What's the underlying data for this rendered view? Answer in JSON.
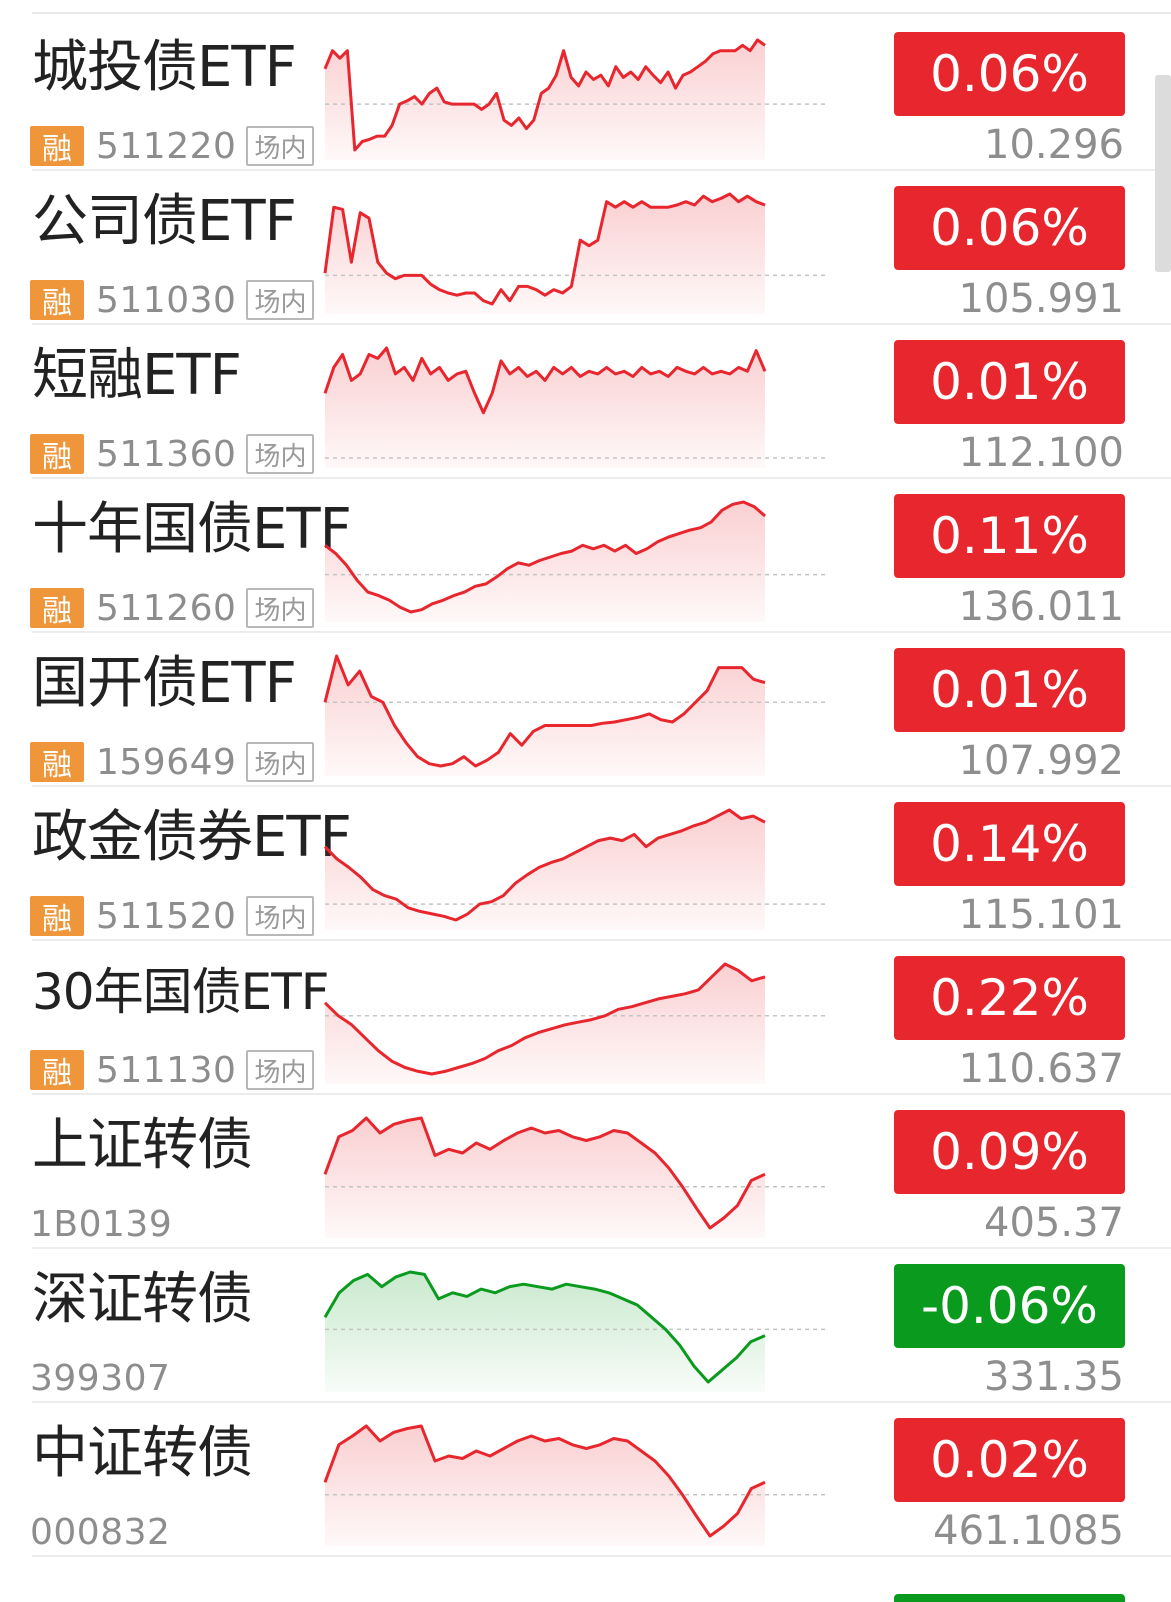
{
  "colors": {
    "up": "#e8262e",
    "down": "#0a9a1e",
    "tag_orange": "#f0963a"
  },
  "rows": [
    {
      "name": "城投债ETF",
      "has_tag": true,
      "tag_rong": "融",
      "code": "511220",
      "tag_market": "场内",
      "change": "0.06%",
      "direction": "up",
      "price": "10.296",
      "spark": [
        0.78,
        0.95,
        0.88,
        0.95,
        0.02,
        0.1,
        0.12,
        0.15,
        0.15,
        0.25,
        0.45,
        0.48,
        0.52,
        0.45,
        0.55,
        0.6,
        0.47,
        0.45,
        0.45,
        0.45,
        0.45,
        0.4,
        0.45,
        0.55,
        0.3,
        0.25,
        0.32,
        0.22,
        0.3,
        0.55,
        0.6,
        0.72,
        0.95,
        0.7,
        0.62,
        0.75,
        0.68,
        0.72,
        0.62,
        0.8,
        0.7,
        0.75,
        0.68,
        0.8,
        0.72,
        0.65,
        0.75,
        0.6,
        0.72,
        0.75,
        0.8,
        0.85,
        0.92,
        0.95,
        0.95,
        0.95,
        1.0,
        0.95,
        1.05,
        1.0
      ],
      "baseline": 0.45
    },
    {
      "name": "公司债ETF",
      "has_tag": true,
      "tag_rong": "融",
      "code": "511030",
      "tag_market": "场内",
      "change": "0.06%",
      "direction": "up",
      "price": "105.991",
      "spark": [
        0.3,
        0.9,
        0.88,
        0.4,
        0.85,
        0.8,
        0.4,
        0.3,
        0.25,
        0.28,
        0.28,
        0.28,
        0.2,
        0.15,
        0.12,
        0.1,
        0.12,
        0.12,
        0.05,
        0.02,
        0.15,
        0.05,
        0.18,
        0.18,
        0.15,
        0.1,
        0.15,
        0.12,
        0.18,
        0.6,
        0.55,
        0.6,
        0.95,
        0.9,
        0.95,
        0.9,
        0.95,
        0.9,
        0.9,
        0.9,
        0.92,
        0.95,
        0.92,
        1.0,
        0.95,
        0.98,
        1.02,
        0.95,
        1.0,
        0.95,
        0.92
      ],
      "baseline": 0.28
    },
    {
      "name": "短融ETF",
      "has_tag": true,
      "tag_rong": "融",
      "code": "511360",
      "tag_market": "场内",
      "change": "0.01%",
      "direction": "up",
      "price": "112.100",
      "spark": [
        0.55,
        0.75,
        0.85,
        0.65,
        0.7,
        0.85,
        0.82,
        0.9,
        0.7,
        0.75,
        0.65,
        0.82,
        0.7,
        0.75,
        0.65,
        0.7,
        0.72,
        0.55,
        0.4,
        0.55,
        0.8,
        0.7,
        0.75,
        0.68,
        0.72,
        0.65,
        0.75,
        0.7,
        0.75,
        0.68,
        0.72,
        0.7,
        0.75,
        0.7,
        0.72,
        0.68,
        0.75,
        0.7,
        0.72,
        0.68,
        0.75,
        0.72,
        0.7,
        0.75,
        0.7,
        0.72,
        0.7,
        0.75,
        0.72,
        0.88,
        0.72
      ],
      "baseline": 0.05
    },
    {
      "name": "十年国债ETF",
      "has_tag": true,
      "tag_rong": "融",
      "code": "511260",
      "tag_market": "场内",
      "change": "0.11%",
      "direction": "up",
      "price": "136.011",
      "spark": [
        0.45,
        0.38,
        0.28,
        0.15,
        0.05,
        0.02,
        -0.02,
        -0.08,
        -0.12,
        -0.1,
        -0.05,
        -0.02,
        0.02,
        0.05,
        0.1,
        0.12,
        0.18,
        0.25,
        0.3,
        0.28,
        0.32,
        0.35,
        0.38,
        0.4,
        0.45,
        0.42,
        0.45,
        0.4,
        0.45,
        0.38,
        0.42,
        0.48,
        0.52,
        0.55,
        0.58,
        0.6,
        0.65,
        0.75,
        0.8,
        0.82,
        0.78,
        0.7
      ],
      "baseline": 0.2
    },
    {
      "name": "国开债ETF",
      "has_tag": true,
      "tag_rong": "融",
      "code": "159649",
      "tag_market": "场内",
      "change": "0.01%",
      "direction": "up",
      "price": "107.992",
      "spark": [
        0.55,
        0.95,
        0.7,
        0.82,
        0.6,
        0.55,
        0.35,
        0.2,
        0.08,
        0.02,
        0.0,
        0.02,
        0.08,
        0.0,
        0.05,
        0.12,
        0.28,
        0.18,
        0.3,
        0.35,
        0.35,
        0.35,
        0.35,
        0.35,
        0.37,
        0.38,
        0.4,
        0.42,
        0.45,
        0.4,
        0.38,
        0.45,
        0.55,
        0.65,
        0.85,
        0.85,
        0.85,
        0.75,
        0.72
      ],
      "baseline": 0.55
    },
    {
      "name": "政金债券ETF",
      "has_tag": true,
      "tag_rong": "融",
      "code": "511520",
      "tag_market": "场内",
      "change": "0.14%",
      "direction": "up",
      "price": "115.101",
      "spark": [
        0.55,
        0.45,
        0.38,
        0.3,
        0.2,
        0.15,
        0.12,
        0.05,
        0.02,
        0.0,
        -0.02,
        -0.05,
        0.0,
        0.08,
        0.1,
        0.15,
        0.25,
        0.32,
        0.38,
        0.42,
        0.45,
        0.5,
        0.55,
        0.6,
        0.62,
        0.6,
        0.65,
        0.55,
        0.62,
        0.65,
        0.68,
        0.72,
        0.75,
        0.8,
        0.85,
        0.78,
        0.8,
        0.75
      ],
      "baseline": 0.08
    },
    {
      "name": "30年国债ETF",
      "has_tag": true,
      "tag_rong": "融",
      "code": "511130",
      "tag_market": "场内",
      "change": "0.22%",
      "direction": "up",
      "price": "110.637",
      "spark": [
        0.55,
        0.45,
        0.38,
        0.28,
        0.18,
        0.1,
        0.05,
        0.02,
        0.0,
        0.02,
        0.05,
        0.08,
        0.12,
        0.18,
        0.22,
        0.28,
        0.32,
        0.35,
        0.38,
        0.4,
        0.42,
        0.45,
        0.5,
        0.52,
        0.55,
        0.58,
        0.6,
        0.62,
        0.65,
        0.75,
        0.85,
        0.8,
        0.72,
        0.75
      ],
      "baseline": 0.45
    },
    {
      "name": "上证转债",
      "has_tag": false,
      "code": "1B0139",
      "change": "0.09%",
      "direction": "up",
      "price": "405.37",
      "spark": [
        0.45,
        0.75,
        0.8,
        0.9,
        0.78,
        0.85,
        0.88,
        0.9,
        0.6,
        0.65,
        0.62,
        0.7,
        0.65,
        0.72,
        0.78,
        0.82,
        0.78,
        0.8,
        0.75,
        0.72,
        0.75,
        0.8,
        0.78,
        0.7,
        0.62,
        0.5,
        0.35,
        0.18,
        0.02,
        0.1,
        0.2,
        0.4,
        0.45
      ],
      "baseline": 0.35
    },
    {
      "name": "深证转债",
      "has_tag": false,
      "code": "399307",
      "change": "-0.06%",
      "direction": "down",
      "price": "331.35",
      "spark": [
        0.55,
        0.75,
        0.85,
        0.9,
        0.8,
        0.88,
        0.92,
        0.9,
        0.7,
        0.75,
        0.72,
        0.78,
        0.75,
        0.8,
        0.82,
        0.8,
        0.78,
        0.82,
        0.8,
        0.78,
        0.75,
        0.7,
        0.65,
        0.55,
        0.45,
        0.32,
        0.15,
        0.02,
        0.12,
        0.22,
        0.35,
        0.4
      ],
      "baseline": 0.45
    },
    {
      "name": "中证转债",
      "has_tag": false,
      "code": "000832",
      "change": "0.02%",
      "direction": "up",
      "price": "461.1085",
      "spark": [
        0.45,
        0.75,
        0.82,
        0.9,
        0.78,
        0.85,
        0.88,
        0.9,
        0.62,
        0.66,
        0.64,
        0.7,
        0.66,
        0.72,
        0.78,
        0.82,
        0.78,
        0.8,
        0.75,
        0.72,
        0.75,
        0.8,
        0.78,
        0.7,
        0.62,
        0.5,
        0.35,
        0.18,
        0.02,
        0.1,
        0.2,
        0.4,
        0.45
      ],
      "baseline": 0.35
    }
  ]
}
